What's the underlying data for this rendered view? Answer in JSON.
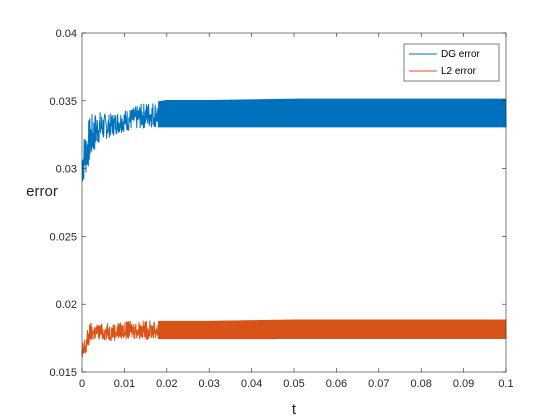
{
  "chart_data": {
    "type": "line",
    "title": "",
    "xlabel": "t",
    "ylabel": "error",
    "xlim": [
      0,
      0.1
    ],
    "ylim": [
      0.015,
      0.04
    ],
    "xticks": [
      "0",
      "0.01",
      "0.02",
      "0.03",
      "0.04",
      "0.05",
      "0.06",
      "0.07",
      "0.08",
      "0.09",
      "0.1"
    ],
    "yticks": [
      "0.015",
      "0.02",
      "0.025",
      "0.03",
      "0.035",
      "0.04"
    ],
    "grid": false,
    "legend_position": "top-right",
    "series": [
      {
        "name": "DG error",
        "color": "#0072BD",
        "style": "oscillating band",
        "x": [
          0,
          0.002,
          0.004,
          0.006,
          0.008,
          0.01,
          0.012,
          0.014,
          0.016,
          0.018,
          0.02,
          0.03,
          0.05,
          0.07,
          0.09,
          0.1
        ],
        "low": [
          0.0285,
          0.0305,
          0.0318,
          0.0322,
          0.0325,
          0.0327,
          0.0328,
          0.0329,
          0.033,
          0.033,
          0.033,
          0.033,
          0.033,
          0.033,
          0.033,
          0.033
        ],
        "high": [
          0.0322,
          0.034,
          0.0343,
          0.034,
          0.0342,
          0.0344,
          0.0345,
          0.0348,
          0.035,
          0.035,
          0.0351,
          0.0351,
          0.0352,
          0.0352,
          0.0352,
          0.0352
        ]
      },
      {
        "name": "L2 error",
        "color": "#D95319",
        "style": "oscillating band",
        "x": [
          0,
          0.002,
          0.004,
          0.006,
          0.008,
          0.01,
          0.012,
          0.014,
          0.016,
          0.018,
          0.02,
          0.03,
          0.05,
          0.07,
          0.09,
          0.1
        ],
        "low": [
          0.015,
          0.0172,
          0.0173,
          0.0173,
          0.0173,
          0.0174,
          0.0174,
          0.0174,
          0.0174,
          0.0174,
          0.0174,
          0.0174,
          0.0174,
          0.0174,
          0.0174,
          0.0174
        ],
        "high": [
          0.0172,
          0.0187,
          0.0186,
          0.0186,
          0.0187,
          0.0187,
          0.0188,
          0.0188,
          0.0188,
          0.0188,
          0.0188,
          0.0188,
          0.0189,
          0.0189,
          0.0189,
          0.0189
        ]
      }
    ]
  }
}
